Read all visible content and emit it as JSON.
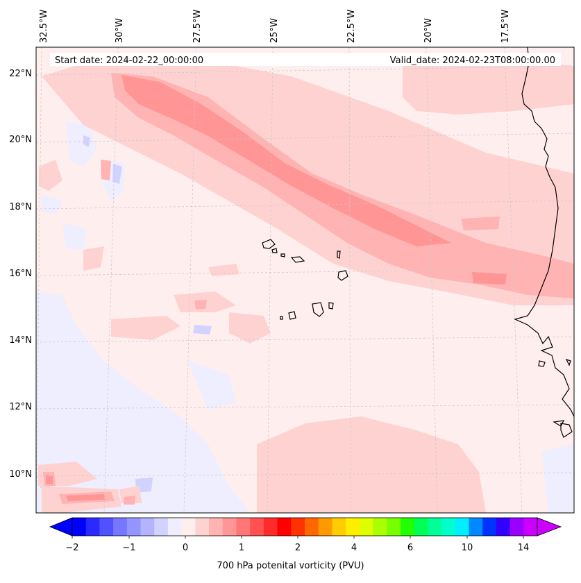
{
  "header": {
    "start_date": "Start date: 2024-02-22_00:00:00",
    "valid_date": "Valid_date: 2024-02-23T08:00:00.00"
  },
  "map": {
    "longitude_labels": [
      "32.5°W",
      "30°W",
      "27.5°W",
      "25°W",
      "22.5°W",
      "20°W",
      "17.5°W"
    ],
    "latitude_labels": [
      "22°N",
      "20°N",
      "18°N",
      "16°N",
      "14°N",
      "12°N",
      "10°N"
    ],
    "region": "Cabo Verde islands and West African coast",
    "field": "700 hPa potential vorticity",
    "coastline_color": "#000000",
    "gridline_color": "#bbbbbb"
  },
  "colorbar": {
    "title": "700 hPa potenital vorticity (PVU)",
    "tick_labels": [
      "−2",
      "−1",
      "0",
      "1",
      "2",
      "4",
      "6",
      "10",
      "14"
    ],
    "tick_values": [
      -2,
      -1,
      0,
      1,
      2,
      4,
      6,
      10,
      14
    ],
    "colors": [
      "#0000ff",
      "#2a2aff",
      "#5151ff",
      "#7676ff",
      "#9595ff",
      "#b3b3ff",
      "#d2d2ff",
      "#eeeeff",
      "#ffeeee",
      "#ffd2d2",
      "#ffb3b3",
      "#ff9595",
      "#ff7676",
      "#ff5151",
      "#ff2a2a",
      "#ff0000",
      "#ff3300",
      "#ff6600",
      "#ff9900",
      "#ffcc00",
      "#ffee00",
      "#ddff00",
      "#aaff00",
      "#77ff00",
      "#22ff00",
      "#00ff55",
      "#00ff99",
      "#00ffcc",
      "#00eeff",
      "#0088ff",
      "#0033ff",
      "#3300ff",
      "#9900ff",
      "#cc00ff"
    ],
    "under_color": "#0000ff",
    "over_color": "#cc00ff",
    "extend": "both"
  }
}
